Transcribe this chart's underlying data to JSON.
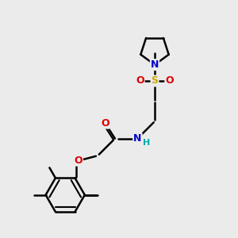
{
  "bg_color": "#ebebeb",
  "atom_colors": {
    "C": "#000000",
    "N": "#0000cc",
    "O": "#dd0000",
    "S": "#ccaa00",
    "H": "#00aaaa"
  },
  "bond_color": "#000000",
  "bond_width": 1.8,
  "font_size": 9
}
